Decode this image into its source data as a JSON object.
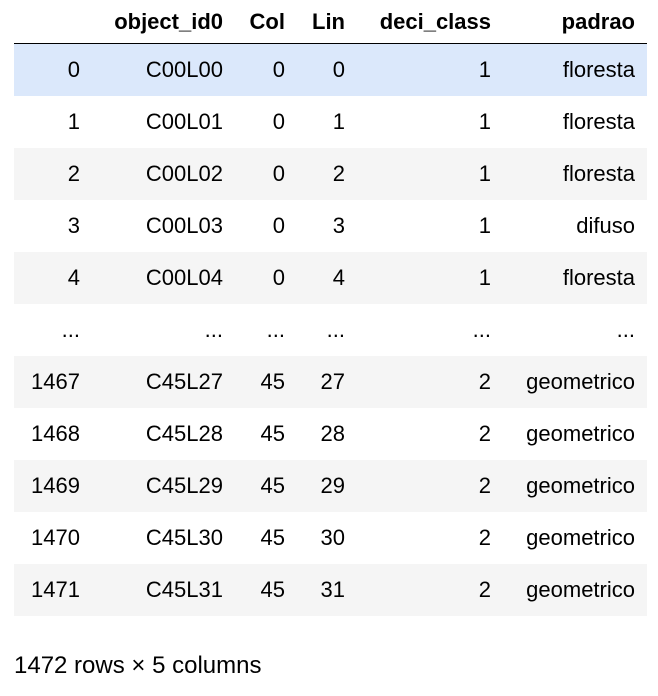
{
  "columns": [
    "",
    "object_id0",
    "Col",
    "Lin",
    "deci_class",
    "padrao"
  ],
  "rows": [
    [
      "0",
      "C00L00",
      "0",
      "0",
      "1",
      "floresta"
    ],
    [
      "1",
      "C00L01",
      "0",
      "1",
      "1",
      "floresta"
    ],
    [
      "2",
      "C00L02",
      "0",
      "2",
      "1",
      "floresta"
    ],
    [
      "3",
      "C00L03",
      "0",
      "3",
      "1",
      "difuso"
    ],
    [
      "4",
      "C00L04",
      "0",
      "4",
      "1",
      "floresta"
    ],
    [
      "...",
      "...",
      "...",
      "...",
      "...",
      "..."
    ],
    [
      "1467",
      "C45L27",
      "45",
      "27",
      "2",
      "geometrico"
    ],
    [
      "1468",
      "C45L28",
      "45",
      "28",
      "2",
      "geometrico"
    ],
    [
      "1469",
      "C45L29",
      "45",
      "29",
      "2",
      "geometrico"
    ],
    [
      "1470",
      "C45L30",
      "45",
      "30",
      "2",
      "geometrico"
    ],
    [
      "1471",
      "C45L31",
      "45",
      "31",
      "2",
      "geometrico"
    ]
  ],
  "footer": "1472 rows × 5 columns",
  "colors": {
    "row_even": "#f5f5f5",
    "row_hover": "#dbe8fb"
  }
}
